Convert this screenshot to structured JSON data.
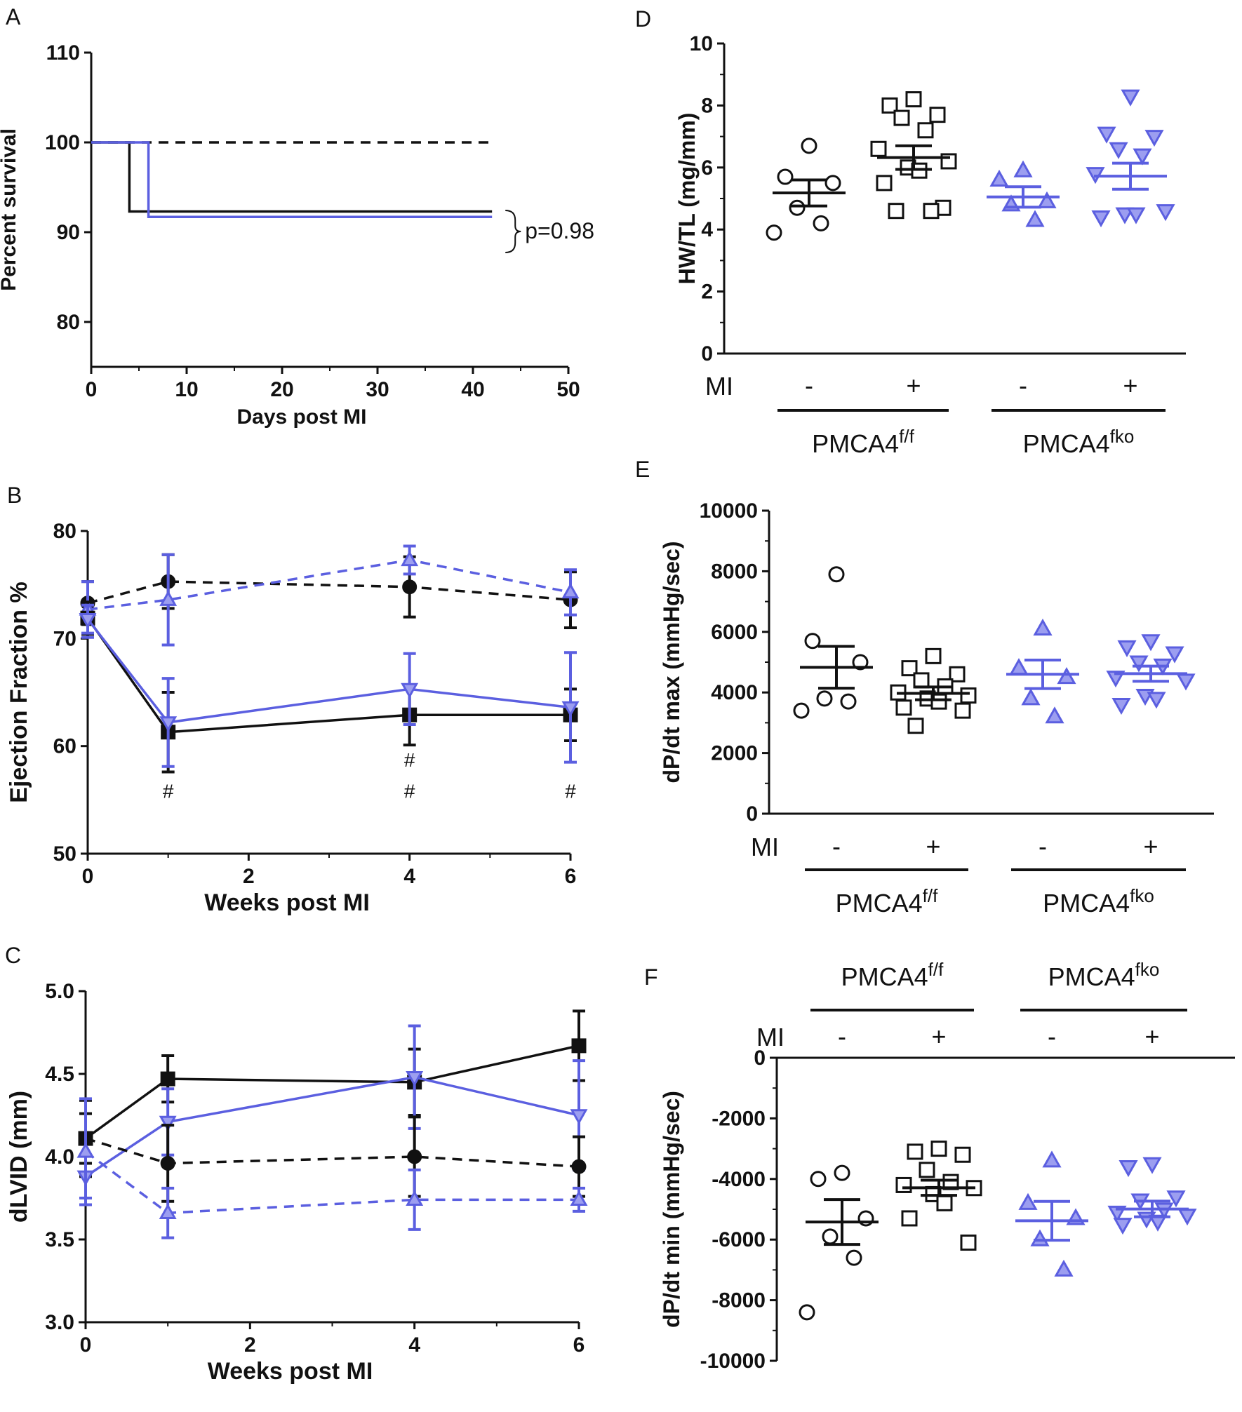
{
  "colors": {
    "black": "#111111",
    "blue": "#5b5fe0",
    "blue_fill": "#9c9ef0",
    "hash_blue": "#4a5fd0"
  },
  "chart_data": [
    {
      "panel": "A",
      "type": "line",
      "subtype": "kaplan-meier",
      "xlabel": "Days post MI",
      "ylabel": "Percent survival",
      "xlim": [
        0,
        50
      ],
      "ylim": [
        75,
        110
      ],
      "xticks": [
        0,
        10,
        20,
        30,
        40,
        50
      ],
      "yticks": [
        80,
        90,
        100,
        110
      ],
      "series": [
        {
          "style": "dashed-black",
          "x": [
            0,
            42
          ],
          "y": [
            100,
            100
          ]
        },
        {
          "style": "solid-black",
          "x": [
            0,
            4,
            4,
            42
          ],
          "y": [
            100,
            100,
            92.3,
            92.3
          ]
        },
        {
          "style": "solid-blue",
          "x": [
            0,
            6,
            6,
            42
          ],
          "y": [
            100,
            100,
            91.7,
            91.7
          ]
        }
      ],
      "annotation": "p=0.98"
    },
    {
      "panel": "B",
      "type": "line",
      "xlabel": "Weeks post MI",
      "ylabel": "Ejection Fraction %",
      "xlim": [
        0,
        6
      ],
      "ylim": [
        50,
        80
      ],
      "xticks": [
        0,
        2,
        4,
        6
      ],
      "yticks": [
        50,
        60,
        70,
        80
      ],
      "series": [
        {
          "style": "dashed-black",
          "marker": "circle",
          "x": [
            0,
            1,
            4,
            6
          ],
          "y": [
            73.3,
            75.3,
            74.8,
            73.6
          ],
          "err": [
            2.0,
            2.5,
            2.8,
            2.6
          ]
        },
        {
          "style": "dashed-blue",
          "marker": "triangle-up",
          "x": [
            0,
            1,
            4,
            6
          ],
          "y": [
            72.7,
            73.6,
            77.3,
            74.3
          ],
          "err": [
            2.6,
            4.2,
            1.3,
            2.1
          ]
        },
        {
          "style": "solid-black",
          "marker": "square",
          "x": [
            0,
            1,
            4,
            6
          ],
          "y": [
            71.9,
            61.3,
            62.9,
            62.9
          ],
          "err": [
            1.5,
            3.7,
            2.8,
            2.4
          ]
        },
        {
          "style": "solid-blue",
          "marker": "triangle-down",
          "x": [
            0,
            1,
            4,
            6
          ],
          "y": [
            71.8,
            62.2,
            65.3,
            63.6
          ],
          "err": [
            1.3,
            4.1,
            3.3,
            5.1
          ]
        }
      ],
      "annotations": [
        {
          "text": "#",
          "x": 1,
          "y": 55.2,
          "color": "black"
        },
        {
          "text": "#",
          "x": 4,
          "y": 55.2,
          "color": "black"
        },
        {
          "text": "#",
          "x": 6,
          "y": 55.2,
          "color": "black"
        },
        {
          "text": "#",
          "x": 4,
          "y": 58.1,
          "color": "blue"
        }
      ]
    },
    {
      "panel": "C",
      "type": "line",
      "xlabel": "Weeks post MI",
      "ylabel": "dLVID (mm)",
      "xlim": [
        0,
        6
      ],
      "ylim": [
        3.0,
        5.0
      ],
      "xticks": [
        0,
        2,
        4,
        6
      ],
      "yticks": [
        3.0,
        3.5,
        4.0,
        4.5,
        5.0
      ],
      "ytick_labels": [
        "3.0",
        "3.5",
        "4.0",
        "4.5",
        "5.0"
      ],
      "series": [
        {
          "style": "solid-black",
          "marker": "square",
          "x": [
            0,
            1,
            4,
            6
          ],
          "y": [
            4.11,
            4.47,
            4.45,
            4.67
          ],
          "err": [
            0.23,
            0.14,
            0.2,
            0.21
          ]
        },
        {
          "style": "solid-blue",
          "marker": "triangle-down",
          "x": [
            0,
            1,
            4,
            6
          ],
          "y": [
            3.88,
            4.21,
            4.48,
            4.25
          ],
          "err": [
            0.13,
            0.2,
            0.31,
            0.33
          ]
        },
        {
          "style": "dashed-black",
          "marker": "circle",
          "x": [
            0,
            1,
            4,
            6
          ],
          "y": [
            4.11,
            3.96,
            4.0,
            3.94
          ],
          "err": [
            0.15,
            0.23,
            0.24,
            0.18
          ]
        },
        {
          "style": "dashed-blue",
          "marker": "triangle-up",
          "x": [
            0,
            1,
            4,
            6
          ],
          "y": [
            4.03,
            3.66,
            3.74,
            3.74
          ],
          "err": [
            0.32,
            0.15,
            0.18,
            0.07
          ]
        }
      ]
    },
    {
      "panel": "D",
      "type": "scatter",
      "ylabel": "HW/TL (mg/mm)",
      "ylim": [
        0,
        10
      ],
      "yticks": [
        0,
        2,
        4,
        6,
        8,
        10
      ],
      "mi_label": "MI",
      "groups": [
        {
          "mi": "-",
          "marker": "circle",
          "color": "black",
          "mean": 5.18,
          "sem": 0.42,
          "points": [
            6.7,
            5.7,
            5.5,
            4.7,
            4.2,
            3.9
          ]
        },
        {
          "mi": "+",
          "marker": "square",
          "color": "black",
          "mean": 6.32,
          "sem": 0.38,
          "points": [
            8.2,
            8.0,
            7.7,
            7.6,
            7.2,
            6.6,
            6.2,
            6.0,
            5.9,
            5.5,
            4.7,
            4.6,
            4.6
          ]
        },
        {
          "mi": "-",
          "marker": "triangle-up",
          "color": "blue",
          "mean": 5.05,
          "sem": 0.33,
          "points": [
            5.9,
            5.6,
            4.9,
            4.8,
            4.3
          ]
        },
        {
          "mi": "+",
          "marker": "triangle-down",
          "color": "blue",
          "mean": 5.72,
          "sem": 0.42,
          "points": [
            8.3,
            7.1,
            7.0,
            6.6,
            6.4,
            5.8,
            4.6,
            4.5,
            4.5,
            4.4
          ]
        }
      ],
      "genotypes": [
        {
          "base": "PMCA4",
          "sup": "f/f"
        },
        {
          "base": "PMCA4",
          "sup": "fko"
        }
      ]
    },
    {
      "panel": "E",
      "type": "scatter",
      "ylabel": "dP/dt max (mmHg/sec)",
      "ylim": [
        0,
        10000
      ],
      "yticks": [
        0,
        2000,
        4000,
        6000,
        8000,
        10000
      ],
      "mi_label": "MI",
      "groups": [
        {
          "mi": "-",
          "marker": "circle",
          "color": "black",
          "mean": 4830,
          "sem": 690,
          "points": [
            7900,
            5700,
            5000,
            3800,
            3700,
            3400
          ]
        },
        {
          "mi": "+",
          "marker": "square",
          "color": "black",
          "mean": 3970,
          "sem": 210,
          "points": [
            5200,
            4800,
            4600,
            4400,
            4200,
            4000,
            3900,
            3800,
            3700,
            3500,
            3400,
            2900
          ]
        },
        {
          "mi": "-",
          "marker": "triangle-up",
          "color": "blue",
          "mean": 4600,
          "sem": 470,
          "points": [
            6100,
            4800,
            4500,
            3800,
            3200
          ]
        },
        {
          "mi": "+",
          "marker": "triangle-down",
          "color": "blue",
          "mean": 4620,
          "sem": 250,
          "points": [
            5700,
            5500,
            5300,
            5000,
            4900,
            4500,
            4400,
            3900,
            3800,
            3600
          ]
        }
      ],
      "genotypes": [
        {
          "base": "PMCA4",
          "sup": "f/f"
        },
        {
          "base": "PMCA4",
          "sup": "fko"
        }
      ]
    },
    {
      "panel": "F",
      "type": "scatter",
      "ylabel": "dP/dt min (mmHg/sec)",
      "ylim": [
        -10000,
        0
      ],
      "yticks": [
        0,
        -2000,
        -4000,
        -6000,
        -8000,
        -10000
      ],
      "mi_label": "MI",
      "groups": [
        {
          "mi": "-",
          "marker": "circle",
          "color": "black",
          "mean": -5420,
          "sem": 740,
          "points": [
            -3800,
            -4000,
            -5300,
            -5900,
            -6600,
            -8400
          ]
        },
        {
          "mi": "+",
          "marker": "square",
          "color": "black",
          "mean": -4290,
          "sem": 250,
          "points": [
            -3000,
            -3100,
            -3200,
            -3700,
            -4100,
            -4200,
            -4300,
            -4500,
            -4800,
            -5300,
            -6100
          ]
        },
        {
          "mi": "-",
          "marker": "triangle-up",
          "color": "blue",
          "mean": -5380,
          "sem": 640,
          "points": [
            -3400,
            -4800,
            -5300,
            -6000,
            -7000
          ]
        },
        {
          "mi": "+",
          "marker": "triangle-down",
          "color": "blue",
          "mean": -4990,
          "sem": 260,
          "points": [
            -3500,
            -3600,
            -4600,
            -4700,
            -5000,
            -5100,
            -5200,
            -5300,
            -5400,
            -5500
          ]
        }
      ],
      "genotypes": [
        {
          "base": "PMCA4",
          "sup": "f/f"
        },
        {
          "base": "PMCA4",
          "sup": "fko"
        }
      ]
    }
  ]
}
